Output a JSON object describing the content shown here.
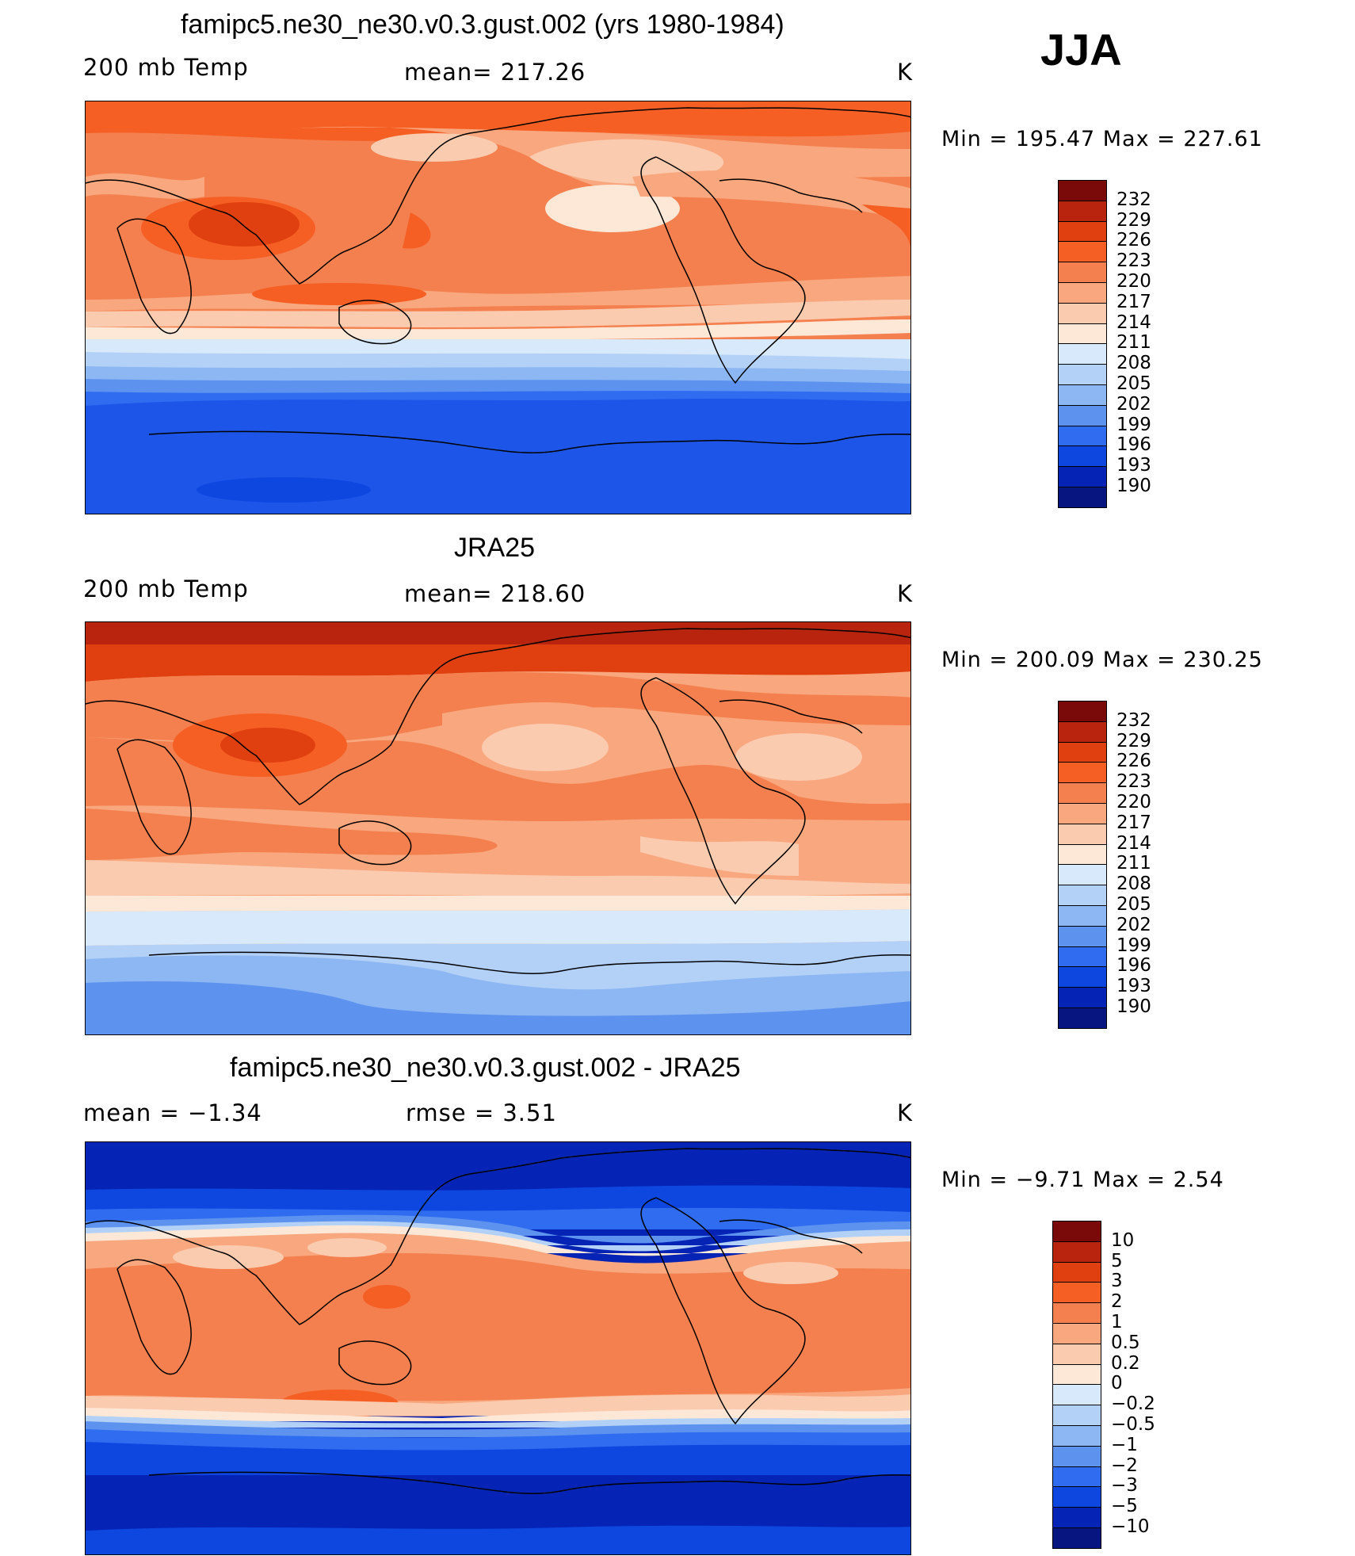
{
  "season": "JJA",
  "panels": [
    {
      "title": "famipc5.ne30_ne30.v0.3.gust.002 (yrs 1980-1984)",
      "left_label": "200 mb Temp",
      "center_label": "mean= 217.26",
      "right_label": "K",
      "minmax": "Min  =  195.47  Max  =  227.61",
      "colorbar": [
        "232",
        "229",
        "226",
        "223",
        "220",
        "217",
        "214",
        "211",
        "208",
        "205",
        "202",
        "199",
        "196",
        "193",
        "190"
      ]
    },
    {
      "title": "JRA25",
      "left_label": "200 mb Temp",
      "center_label": "mean= 218.60",
      "right_label": "K",
      "minmax": "Min  =  200.09  Max  =  230.25",
      "colorbar": [
        "232",
        "229",
        "226",
        "223",
        "220",
        "217",
        "214",
        "211",
        "208",
        "205",
        "202",
        "199",
        "196",
        "193",
        "190"
      ]
    },
    {
      "title": "famipc5.ne30_ne30.v0.3.gust.002 - JRA25",
      "left_label": "mean  =    −1.34",
      "center_label": "rmse  =     3.51",
      "right_label": "K",
      "minmax": "Min  =   −9.71  Max  =     2.54",
      "colorbar": [
        "10",
        "5",
        "3",
        "2",
        "1",
        "0.5",
        "0.2",
        "0",
        "−0.2",
        "−0.5",
        "−1",
        "−2",
        "−3",
        "−5",
        "−10"
      ]
    }
  ],
  "colors": {
    "temp_scale": [
      "#7a0a0a",
      "#b8240e",
      "#e0400f",
      "#f65f24",
      "#f4804f",
      "#f8a77e",
      "#fbcbb0",
      "#fde8d8",
      "#d8e9fb",
      "#b3d1f6",
      "#8db7f3",
      "#5d93ef",
      "#2f6cf0",
      "#0d47e0",
      "#0523b5",
      "#061580"
    ],
    "diff_scale": [
      "#7a0a0a",
      "#b8240e",
      "#e0400f",
      "#f65f24",
      "#f4804f",
      "#f8a77e",
      "#fbcbb0",
      "#fde8d8",
      "#d8e9fb",
      "#b3d1f6",
      "#8db7f3",
      "#5d93ef",
      "#2f6cf0",
      "#0d47e0",
      "#0523b5",
      "#061580"
    ]
  }
}
